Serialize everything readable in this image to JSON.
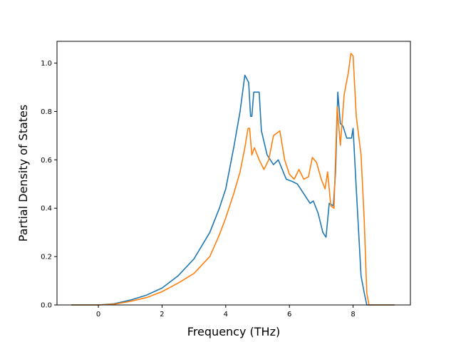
{
  "chart_data": {
    "type": "line",
    "xlabel": "Frequency (THz)",
    "ylabel": "Partial Density of States",
    "xlim": [
      -1.3,
      9.8
    ],
    "ylim": [
      0.0,
      1.09
    ],
    "xticks": [
      0,
      2,
      4,
      6,
      8
    ],
    "yticks": [
      0.0,
      0.2,
      0.4,
      0.6,
      0.8,
      1.0
    ],
    "grid": false,
    "legend": "none",
    "series": [
      {
        "color": "#1f77b4",
        "x": [
          -0.85,
          0.0,
          0.5,
          1.0,
          1.5,
          2.0,
          2.5,
          3.0,
          3.5,
          3.8,
          4.0,
          4.25,
          4.45,
          4.6,
          4.72,
          4.78,
          4.82,
          4.88,
          5.05,
          5.12,
          5.3,
          5.5,
          5.65,
          5.9,
          6.1,
          6.25,
          6.4,
          6.55,
          6.65,
          6.75,
          6.9,
          7.05,
          7.15,
          7.25,
          7.38,
          7.45,
          7.52,
          7.6,
          7.68,
          7.8,
          7.95,
          8.0,
          8.1,
          8.25,
          8.35,
          8.43,
          9.3
        ],
        "values": [
          0.0,
          0.0,
          0.005,
          0.02,
          0.04,
          0.07,
          0.12,
          0.19,
          0.3,
          0.4,
          0.48,
          0.65,
          0.8,
          0.95,
          0.92,
          0.78,
          0.78,
          0.88,
          0.88,
          0.72,
          0.62,
          0.58,
          0.6,
          0.52,
          0.51,
          0.5,
          0.47,
          0.44,
          0.42,
          0.43,
          0.38,
          0.3,
          0.28,
          0.42,
          0.41,
          0.55,
          0.88,
          0.75,
          0.74,
          0.69,
          0.69,
          0.73,
          0.48,
          0.12,
          0.05,
          0.0,
          0.0
        ]
      },
      {
        "color": "#ff7f0e",
        "x": [
          -0.85,
          0.0,
          0.5,
          1.0,
          1.5,
          2.0,
          2.5,
          3.0,
          3.5,
          3.8,
          4.0,
          4.25,
          4.45,
          4.6,
          4.7,
          4.75,
          4.82,
          4.9,
          5.05,
          5.2,
          5.35,
          5.5,
          5.7,
          5.85,
          6.0,
          6.15,
          6.3,
          6.45,
          6.6,
          6.72,
          6.85,
          7.0,
          7.12,
          7.2,
          7.3,
          7.4,
          7.5,
          7.6,
          7.72,
          7.85,
          7.93,
          8.0,
          8.1,
          8.25,
          8.35,
          8.43,
          8.5,
          9.3
        ],
        "values": [
          0.0,
          0.0,
          0.003,
          0.015,
          0.03,
          0.055,
          0.09,
          0.13,
          0.2,
          0.29,
          0.36,
          0.46,
          0.55,
          0.65,
          0.73,
          0.73,
          0.62,
          0.65,
          0.6,
          0.56,
          0.6,
          0.7,
          0.72,
          0.6,
          0.54,
          0.52,
          0.56,
          0.52,
          0.53,
          0.61,
          0.59,
          0.52,
          0.48,
          0.55,
          0.41,
          0.4,
          0.82,
          0.66,
          0.87,
          0.96,
          1.04,
          1.03,
          0.78,
          0.62,
          0.35,
          0.05,
          0.0,
          0.0
        ]
      }
    ]
  }
}
